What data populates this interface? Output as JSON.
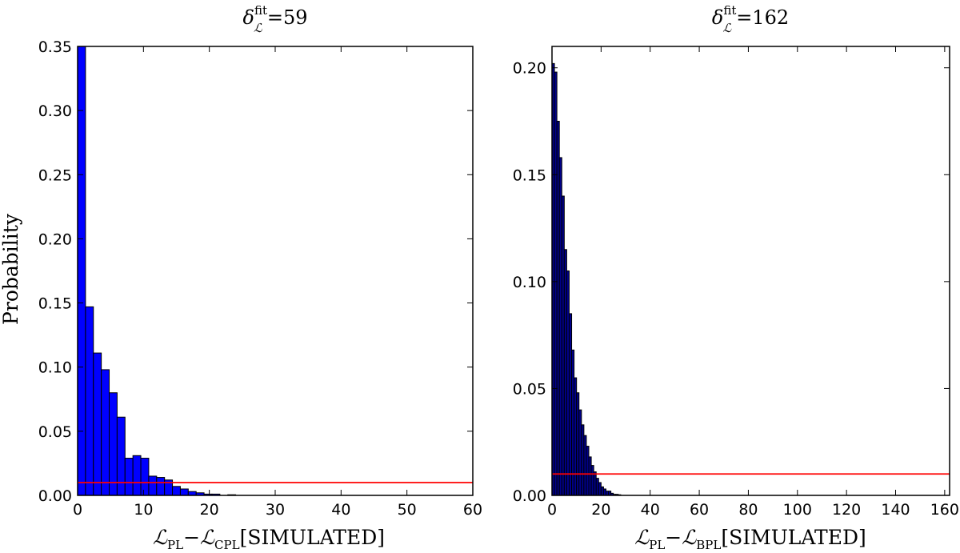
{
  "chart_data": [
    {
      "type": "bar",
      "title": {
        "symbol": "δ",
        "sup": "fit",
        "sub": "ℒ",
        "value": "=59"
      },
      "xlabel": {
        "a": "ℒ",
        "a_sub": "PL",
        "dash": "−",
        "b": "ℒ",
        "b_sub": "CPL",
        "suffix": "[SIMULATED]"
      },
      "ylabel": "Probability",
      "xlim": [
        0,
        60
      ],
      "ylim": [
        0,
        0.35
      ],
      "xticks": [
        0,
        10,
        20,
        30,
        40,
        50,
        60
      ],
      "xtick_labels": [
        "0",
        "10",
        "20",
        "30",
        "40",
        "50",
        "60"
      ],
      "yticks": [
        0,
        0.05,
        0.1,
        0.15,
        0.2,
        0.25,
        0.3,
        0.35
      ],
      "ytick_labels": [
        "0.00",
        "0.05",
        "0.10",
        "0.15",
        "0.20",
        "0.25",
        "0.30",
        "0.35"
      ],
      "bin_width": 1.2,
      "bin_start": 0,
      "values": [
        0.35,
        0.147,
        0.111,
        0.098,
        0.08,
        0.061,
        0.029,
        0.031,
        0.029,
        0.015,
        0.014,
        0.012,
        0.007,
        0.005,
        0.003,
        0.002,
        0.001,
        0.001,
        0,
        0.0005,
        0,
        0,
        0,
        0,
        0,
        0,
        0,
        0,
        0,
        0,
        0,
        0,
        0,
        0,
        0,
        0,
        0,
        0,
        0,
        0,
        0,
        0,
        0,
        0,
        0,
        0,
        0,
        0,
        0,
        0
      ],
      "threshold": 0.01,
      "bar_color": "#0000ff",
      "line_color": "#ff0000"
    },
    {
      "type": "bar",
      "title": {
        "symbol": "δ",
        "sup": "fit",
        "sub": "ℒ",
        "value": "=162"
      },
      "xlabel": {
        "a": "ℒ",
        "a_sub": "PL",
        "dash": "−",
        "b": "ℒ",
        "b_sub": "BPL",
        "suffix": "[SIMULATED]"
      },
      "xlim": [
        0,
        162
      ],
      "ylim": [
        0,
        0.21
      ],
      "xticks": [
        0,
        20,
        40,
        60,
        80,
        100,
        120,
        140,
        160
      ],
      "xtick_labels": [
        "0",
        "20",
        "40",
        "60",
        "80",
        "100",
        "120",
        "140",
        "160"
      ],
      "yticks": [
        0,
        0.05,
        0.1,
        0.15,
        0.2
      ],
      "ytick_labels": [
        "0.00",
        "0.05",
        "0.10",
        "0.15",
        "0.20"
      ],
      "bin_width": 1.0,
      "bin_start": 0,
      "values": [
        0.202,
        0.198,
        0.175,
        0.158,
        0.14,
        0.115,
        0.105,
        0.085,
        0.068,
        0.055,
        0.048,
        0.04,
        0.033,
        0.028,
        0.023,
        0.018,
        0.014,
        0.011,
        0.008,
        0.006,
        0.004,
        0.003,
        0.002,
        0.002,
        0.001,
        0.0005,
        0.0005,
        0.0003
      ],
      "threshold": 0.01,
      "bar_color": "#00008b",
      "line_color": "#ff0000"
    }
  ]
}
